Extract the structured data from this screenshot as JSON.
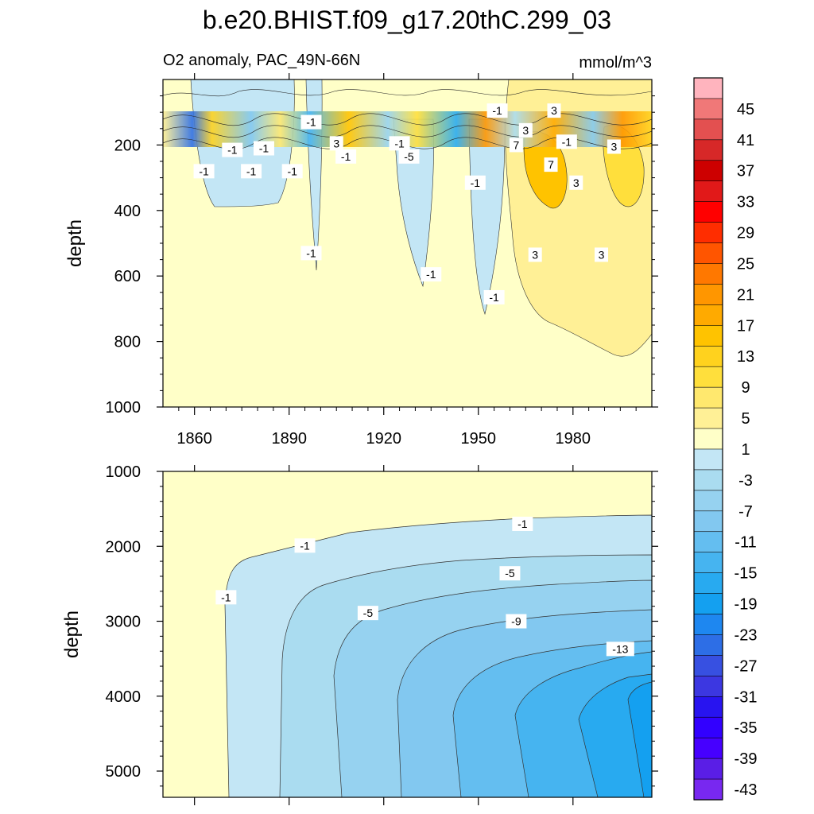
{
  "title": "b.e20.BHIST.f09_g17.20thC.299_03",
  "chart_data": [
    {
      "type": "contour",
      "panel": "upper",
      "subtitle_left": "O2 anomaly, PAC_49N-66N",
      "subtitle_right": "mmol/m^3",
      "xlabel": "",
      "ylabel": "depth",
      "x_ticks": [
        "1860",
        "1890",
        "1920",
        "1950",
        "1980"
      ],
      "x_tick_values": [
        1860,
        1890,
        1920,
        1950,
        1980
      ],
      "xlim": [
        1850,
        2005
      ],
      "y_ticks": [
        "200",
        "400",
        "600",
        "800",
        "1000"
      ],
      "y_tick_values": [
        200,
        400,
        600,
        800,
        1000
      ],
      "ylim": [
        0,
        1000
      ],
      "contour_labels": [
        {
          "text": "-1",
          "x": 1897,
          "y": 130
        },
        {
          "text": "-1",
          "x": 1872,
          "y": 215
        },
        {
          "text": "-1",
          "x": 1882,
          "y": 210
        },
        {
          "text": "-1",
          "x": 1863,
          "y": 280
        },
        {
          "text": "-1",
          "x": 1878,
          "y": 280
        },
        {
          "text": "-1",
          "x": 1891,
          "y": 280
        },
        {
          "text": "3",
          "x": 1905,
          "y": 195
        },
        {
          "text": "-1",
          "x": 1908,
          "y": 235
        },
        {
          "text": "-1",
          "x": 1925,
          "y": 195
        },
        {
          "text": "-5",
          "x": 1928,
          "y": 235
        },
        {
          "text": "-1",
          "x": 1949,
          "y": 315
        },
        {
          "text": "-1",
          "x": 1956,
          "y": 95
        },
        {
          "text": "3",
          "x": 1965,
          "y": 155
        },
        {
          "text": "7",
          "x": 1962,
          "y": 200
        },
        {
          "text": "3",
          "x": 1974,
          "y": 95
        },
        {
          "text": "-1",
          "x": 1978,
          "y": 190
        },
        {
          "text": "7",
          "x": 1973,
          "y": 260
        },
        {
          "text": "3",
          "x": 1981,
          "y": 315
        },
        {
          "text": "3",
          "x": 1993,
          "y": 205
        },
        {
          "text": "-1",
          "x": 1897,
          "y": 530
        },
        {
          "text": "-1",
          "x": 1935,
          "y": 595
        },
        {
          "text": "-1",
          "x": 1955,
          "y": 665
        },
        {
          "text": "3",
          "x": 1968,
          "y": 535
        },
        {
          "text": "3",
          "x": 1989,
          "y": 535
        }
      ]
    },
    {
      "type": "contour",
      "panel": "lower",
      "xlabel": "",
      "ylabel": "depth",
      "y_ticks": [
        "1000",
        "2000",
        "3000",
        "4000",
        "5000"
      ],
      "y_tick_values": [
        1000,
        2000,
        3000,
        4000,
        5000
      ],
      "ylim": [
        1000,
        5350
      ],
      "xlim": [
        1850,
        2005
      ],
      "contour_labels": [
        {
          "text": "-1",
          "x": 1964,
          "y": 1700
        },
        {
          "text": "-1",
          "x": 1895,
          "y": 1990
        },
        {
          "text": "-1",
          "x": 1870,
          "y": 2680
        },
        {
          "text": "-5",
          "x": 1960,
          "y": 2360
        },
        {
          "text": "-5",
          "x": 1915,
          "y": 2890
        },
        {
          "text": "-9",
          "x": 1962,
          "y": 3000
        },
        {
          "text": "-13",
          "x": 1995,
          "y": 3370
        }
      ]
    }
  ],
  "colorbar": {
    "labels": [
      "45",
      "41",
      "37",
      "33",
      "29",
      "25",
      "21",
      "17",
      "13",
      "9",
      "5",
      "1",
      "-3",
      "-7",
      "-11",
      "-15",
      "-19",
      "-23",
      "-27",
      "-31",
      "-35",
      "-39",
      "-43"
    ],
    "colors": [
      "#FFB4BE",
      "#F07878",
      "#E35050",
      "#D72828",
      "#CD0000",
      "#E11919",
      "#FF0000",
      "#FF2D00",
      "#FF5500",
      "#FF7800",
      "#FF9600",
      "#FFAA00",
      "#FFC300",
      "#FFD21E",
      "#FFDF3C",
      "#FFE86E",
      "#FFF096",
      "#FFFFC8",
      "#C3E6F5",
      "#AADCF0",
      "#96D2F0",
      "#82C8F0",
      "#64BEF0",
      "#46B4F0",
      "#28AAF0",
      "#14A0F0",
      "#1E87F0",
      "#2D6EE6",
      "#3750E1",
      "#3C37E1",
      "#2814F0",
      "#3200FF",
      "#4600FF",
      "#5A1EE6",
      "#7828F0"
    ]
  }
}
